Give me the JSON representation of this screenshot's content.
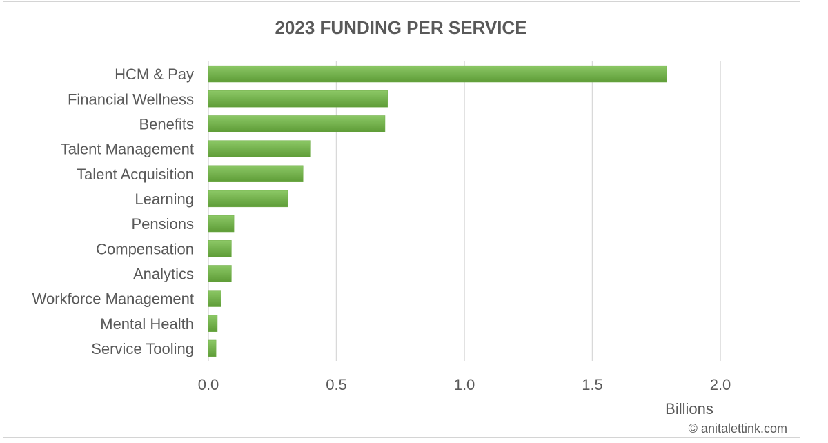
{
  "chart_data": {
    "type": "bar",
    "orientation": "horizontal",
    "title": "2023 FUNDING PER SERVICE",
    "categories": [
      "HCM & Pay",
      "Financial Wellness",
      "Benefits",
      "Talent Management",
      "Talent Acquisition",
      "Learning",
      "Pensions",
      "Compensation",
      "Analytics",
      "Workforce Management",
      "Mental Health",
      "Service Tooling"
    ],
    "values": [
      1.79,
      0.7,
      0.69,
      0.4,
      0.37,
      0.31,
      0.1,
      0.09,
      0.09,
      0.05,
      0.035,
      0.03
    ],
    "x_unit": "Billions",
    "xlim": [
      0,
      2.0
    ],
    "x_ticks": [
      0.0,
      0.5,
      1.0,
      1.5,
      2.0
    ],
    "x_tick_labels": [
      "0.0",
      "0.5",
      "1.0",
      "1.5",
      "2.0"
    ],
    "grid": "vertical",
    "legend": "none",
    "bar_color": "#70ad47",
    "gridline_color": "#d9d9d9"
  },
  "credit": "© anitalettink.com"
}
